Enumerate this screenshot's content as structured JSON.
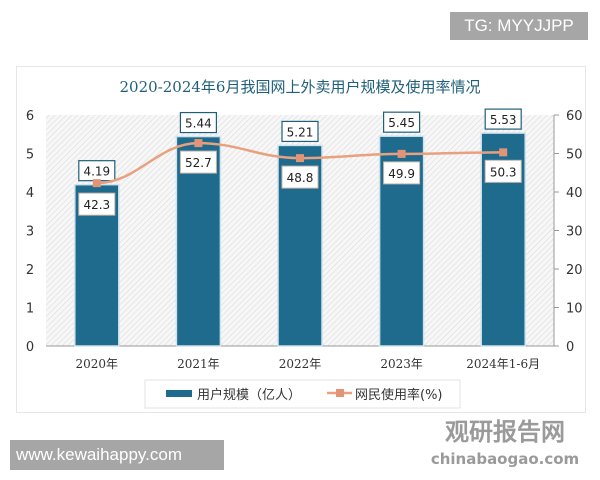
{
  "watermarks": {
    "top_right": "TG: MYYJJPP",
    "bottom_left": "www.kewaihappy.com",
    "logo": "观研报告网 chinabaogao.com"
  },
  "colors": {
    "bar": "#1f6b8e",
    "line": "#e9a07e",
    "marker": "#e39476",
    "title": "#1f5f7a"
  },
  "chart_data": {
    "type": "bar+line",
    "title": "2020-2024年6月我国网上外卖用户规模及使用率情况",
    "categories": [
      "2020年",
      "2021年",
      "2022年",
      "2023年",
      "2024年1-6月"
    ],
    "series": [
      {
        "name": "用户规模（亿人）",
        "type": "bar",
        "axis": "left",
        "values": [
          4.19,
          5.44,
          5.21,
          5.45,
          5.53
        ],
        "labels": [
          "4.19",
          "5.44",
          "5.21",
          "5.45",
          "5.53"
        ]
      },
      {
        "name": "网民使用率(%)",
        "type": "line",
        "axis": "right",
        "values": [
          42.3,
          52.7,
          48.8,
          49.9,
          50.3
        ],
        "labels": [
          "42.3",
          "52.7",
          "48.8",
          "49.9",
          "50.3"
        ]
      }
    ],
    "y_left": {
      "range": [
        0,
        6
      ],
      "ticks": [
        "0",
        "1",
        "2",
        "3",
        "4",
        "5",
        "6"
      ]
    },
    "y_right": {
      "range": [
        0,
        60
      ],
      "ticks": [
        "0",
        "10",
        "20",
        "30",
        "40",
        "50",
        "60"
      ]
    },
    "legend": "bottom",
    "grid": false
  }
}
